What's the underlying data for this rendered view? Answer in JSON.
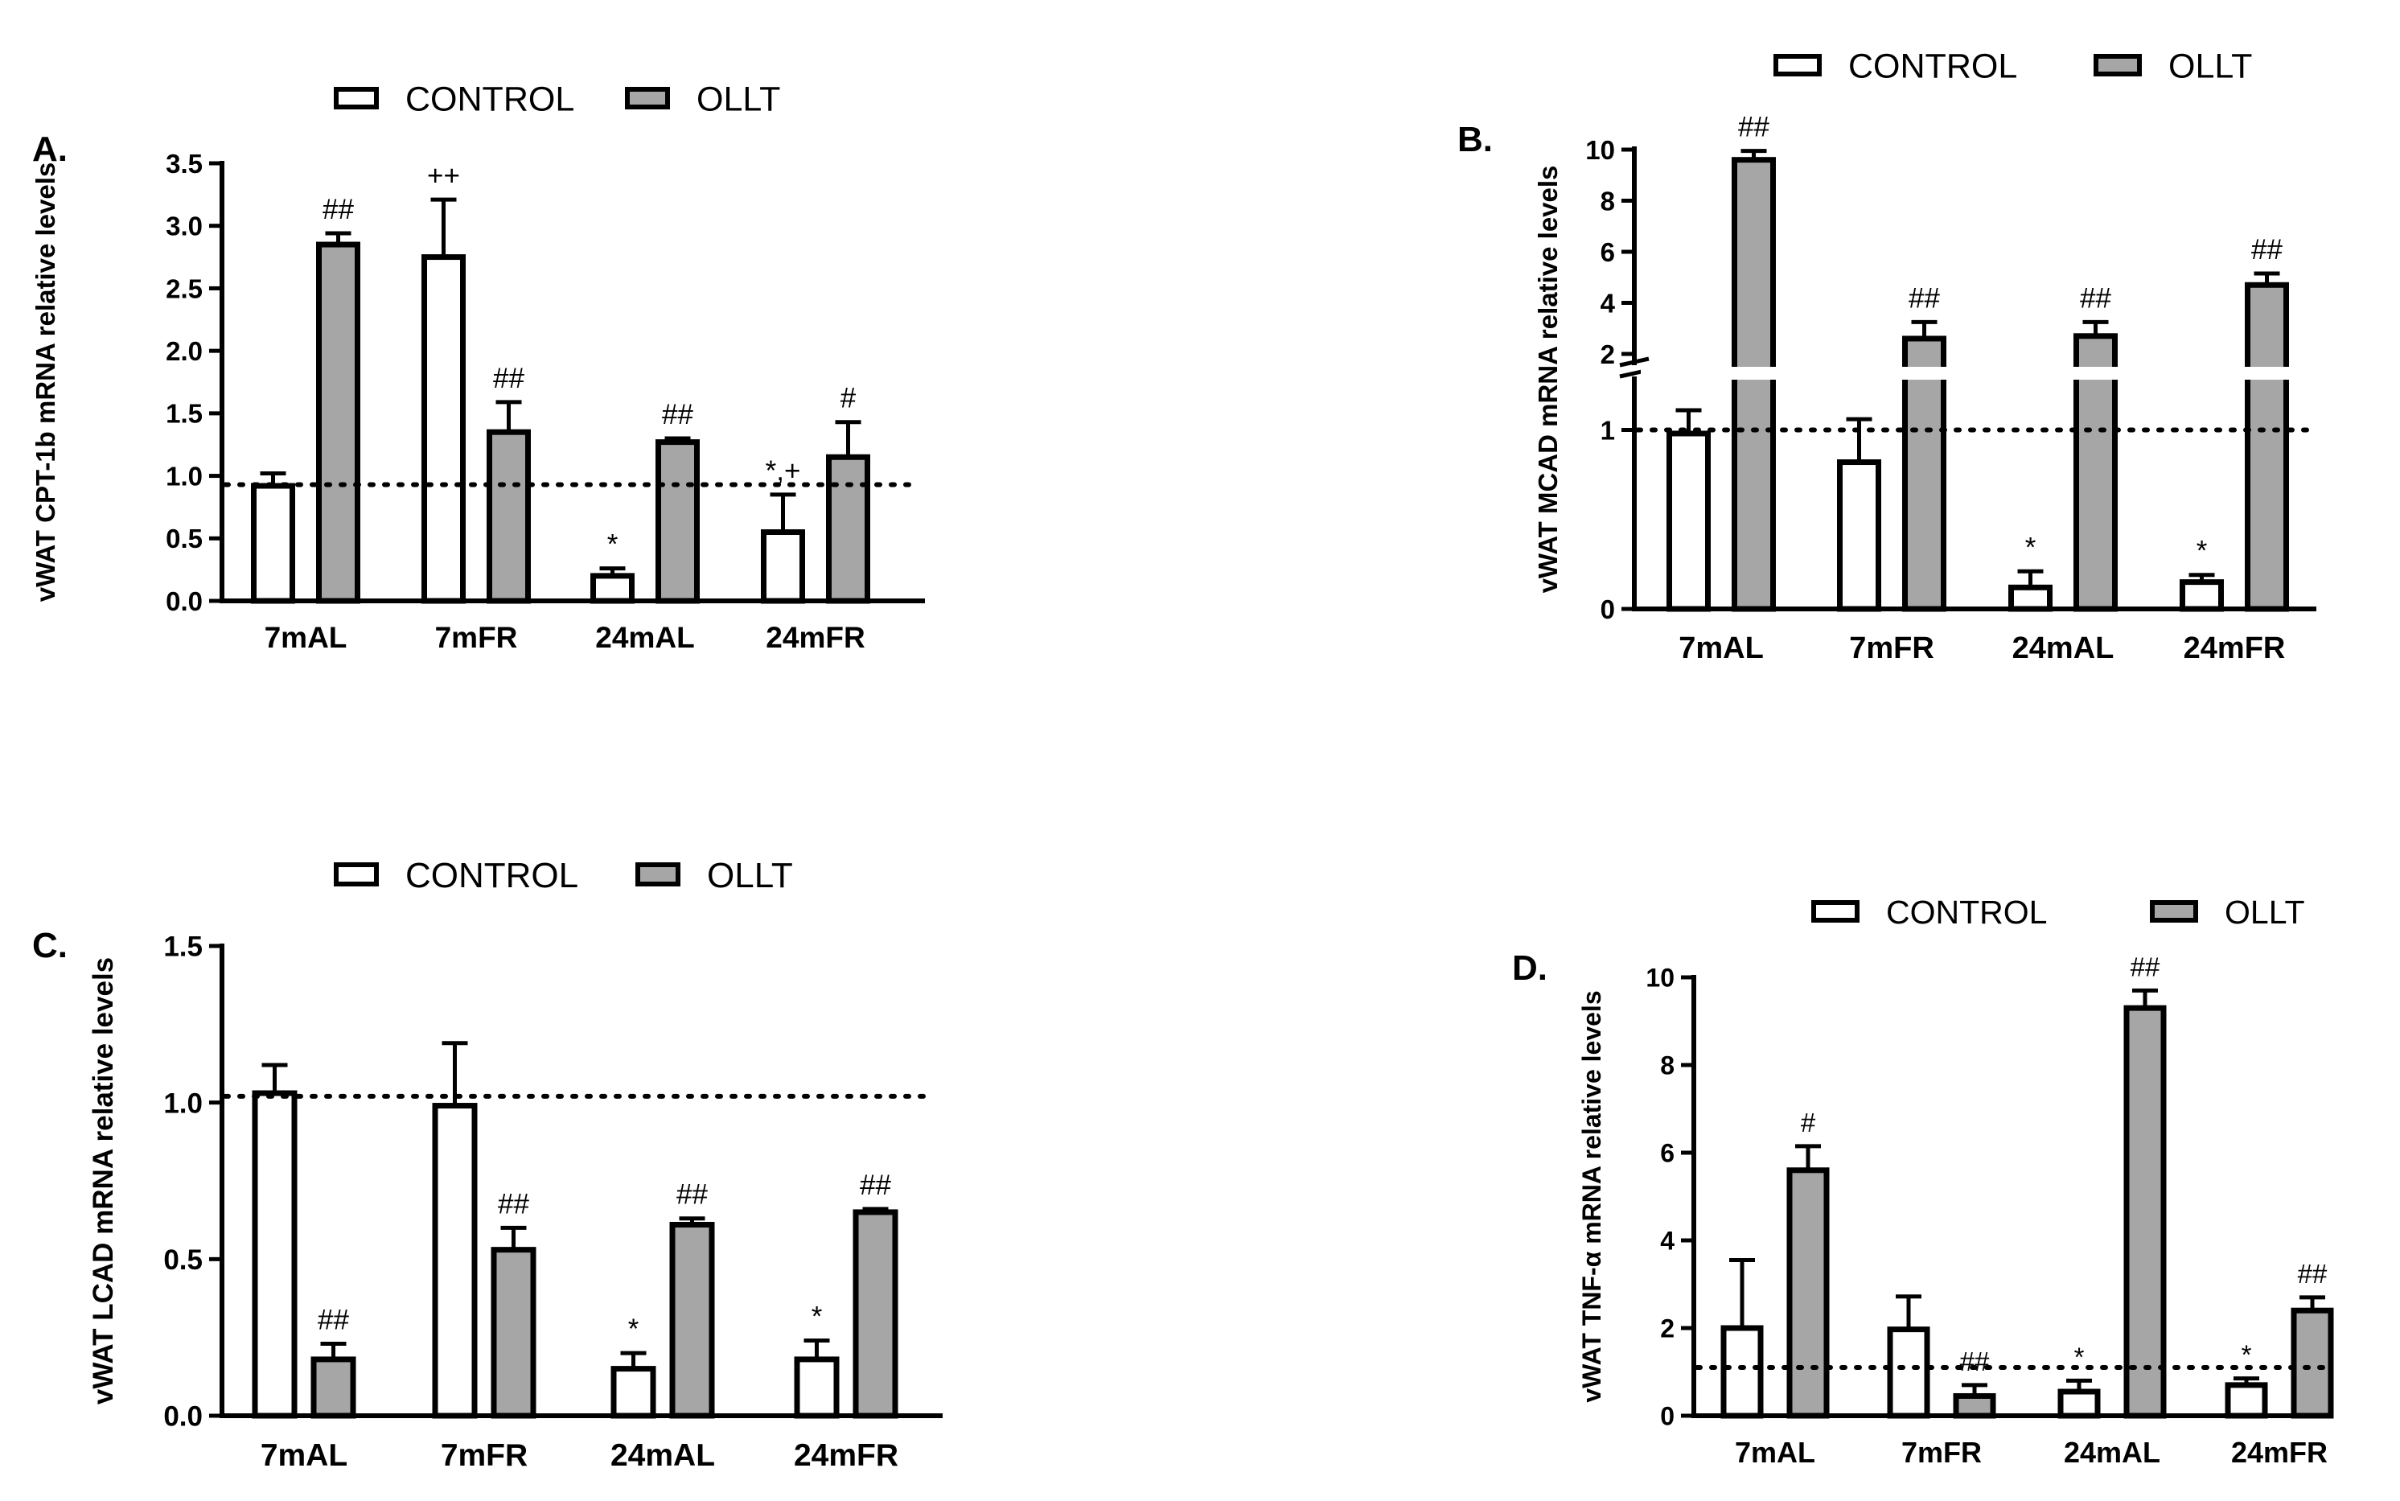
{
  "legend": {
    "control": "CONTROL",
    "ollt": "OLLT"
  },
  "colors": {
    "control": "#ffffff",
    "ollt": "#a6a6a6",
    "ink": "#000000"
  },
  "chart_data": [
    {
      "panel": "A.",
      "type": "bar",
      "ylabel": "vWAT CPT-1b mRNA relative levels",
      "categories": [
        "7mAL",
        "7mFR",
        "24mAL",
        "24mFR"
      ],
      "ylim": [
        0,
        3.5
      ],
      "yticks": [
        "0.0",
        "0.5",
        "1.0",
        "1.5",
        "2.0",
        "2.5",
        "3.0",
        "3.5"
      ],
      "reference_line": 0.93,
      "legend_position": "top-center",
      "series": [
        {
          "name": "CONTROL",
          "values": [
            0.92,
            2.75,
            0.2,
            0.55
          ],
          "errors": [
            0.1,
            0.46,
            0.06,
            0.3
          ],
          "annotations": [
            "",
            "++",
            "*",
            "*,+"
          ]
        },
        {
          "name": "OLLT",
          "values": [
            2.85,
            1.35,
            1.27,
            1.15
          ],
          "errors": [
            0.09,
            0.24,
            0.03,
            0.28
          ],
          "annotations": [
            "##",
            "##",
            "##",
            "#"
          ]
        }
      ]
    },
    {
      "panel": "B.",
      "type": "bar",
      "ylabel": "vWAT MCAD mRNA relative levels",
      "categories": [
        "7mAL",
        "7mFR",
        "24mAL",
        "24mFR"
      ],
      "y_axis_break": true,
      "lower_range": [
        0,
        1.2
      ],
      "upper_range": [
        2,
        10
      ],
      "yticks_lower": [
        "0",
        "1"
      ],
      "yticks_upper": [
        "2",
        "4",
        "6",
        "8",
        "10"
      ],
      "reference_line": 1.0,
      "legend_position": "top-right",
      "series": [
        {
          "name": "CONTROL",
          "values": [
            0.98,
            0.82,
            0.12,
            0.15
          ],
          "errors": [
            0.13,
            0.24,
            0.09,
            0.04
          ],
          "annotations": [
            "",
            "",
            "*",
            "*"
          ]
        },
        {
          "name": "OLLT",
          "values": [
            9.6,
            2.6,
            2.7,
            4.7
          ],
          "errors": [
            0.35,
            0.65,
            0.55,
            0.45
          ],
          "annotations": [
            "##",
            "##",
            "##",
            "##"
          ]
        }
      ]
    },
    {
      "panel": "C.",
      "type": "bar",
      "ylabel": "vWAT LCAD mRNA relative levels",
      "categories": [
        "7mAL",
        "7mFR",
        "24mAL",
        "24mFR"
      ],
      "ylim": [
        0,
        1.5
      ],
      "yticks": [
        "0.0",
        "0.5",
        "1.0",
        "1.5"
      ],
      "reference_line": 1.02,
      "legend_position": "top-center",
      "series": [
        {
          "name": "CONTROL",
          "values": [
            1.03,
            0.99,
            0.15,
            0.18
          ],
          "errors": [
            0.09,
            0.2,
            0.05,
            0.06
          ],
          "annotations": [
            "",
            "",
            "*",
            "*"
          ]
        },
        {
          "name": "OLLT",
          "values": [
            0.18,
            0.53,
            0.61,
            0.65
          ],
          "errors": [
            0.05,
            0.07,
            0.02,
            0.01
          ],
          "annotations": [
            "##",
            "##",
            "##",
            "##"
          ]
        }
      ]
    },
    {
      "panel": "D.",
      "type": "bar",
      "ylabel": "vWAT TNF-α mRNA relative levels",
      "categories": [
        "7mAL",
        "7mFR",
        "24mAL",
        "24mFR"
      ],
      "ylim": [
        0,
        10
      ],
      "yticks": [
        "0",
        "2",
        "4",
        "6",
        "8",
        "10"
      ],
      "reference_line": 1.1,
      "legend_position": "top-right",
      "series": [
        {
          "name": "CONTROL",
          "values": [
            2.0,
            1.97,
            0.55,
            0.7
          ],
          "errors": [
            1.55,
            0.75,
            0.25,
            0.15
          ],
          "annotations": [
            "",
            "",
            "*",
            "*"
          ]
        },
        {
          "name": "OLLT",
          "values": [
            5.6,
            0.45,
            9.3,
            2.4
          ],
          "errors": [
            0.55,
            0.25,
            0.4,
            0.3
          ],
          "annotations": [
            "#",
            "##",
            "##",
            "##"
          ]
        }
      ]
    }
  ]
}
